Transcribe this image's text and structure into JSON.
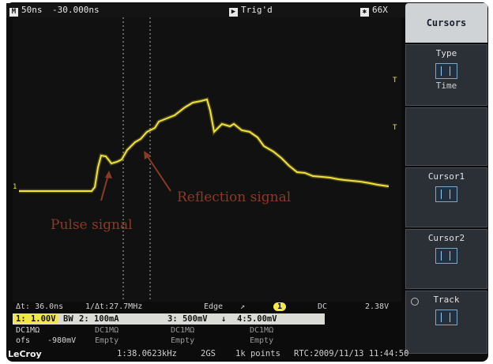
{
  "topbar": {
    "timebase": "50ns",
    "delay": "-30.000ns",
    "trigger": "Trig'd",
    "sample_rate": "66X"
  },
  "menu": {
    "title": "Cursors",
    "type_label": "Type",
    "type_value": "Time",
    "cursor1_label": "Cursor1",
    "cursor2_label": "Cursor2",
    "track_label": "Track"
  },
  "annotations": {
    "pulse": "Pulse signal",
    "reflection": "Reflection signal"
  },
  "readout": {
    "delta_t": "Δt: 36.0ns",
    "inv_delta_t": "1/Δt:27.7MHz",
    "trigger_type": "Edge",
    "trigger_channel": "1",
    "coupling": "DC",
    "trigger_level": "2.38V"
  },
  "channels": {
    "ch1": "1: 1.00V",
    "bw": "BW",
    "ch2": "2: 100mA",
    "ch3": "3: 500mV",
    "ch4": "4:5.00mV"
  },
  "rows": {
    "dc1": "DC1MΩ",
    "dc2": "DC1MΩ",
    "dc3": "DC1MΩ",
    "dc4": "DC1MΩ",
    "ofs": "ofs",
    "offset": "-980mV",
    "empty2": "Empty",
    "empty3": "Empty",
    "empty4": "Empty"
  },
  "status": {
    "logo": "LeCroy",
    "freq": "1:38.0623kHz",
    "rate": "2GS",
    "points": "1k points",
    "rtc": "RTC:2009/11/13 11:44:50"
  },
  "colors": {
    "trace": "#f2e23c",
    "annotation": "#8a3a26",
    "cursor": "#d8d8c0"
  }
}
